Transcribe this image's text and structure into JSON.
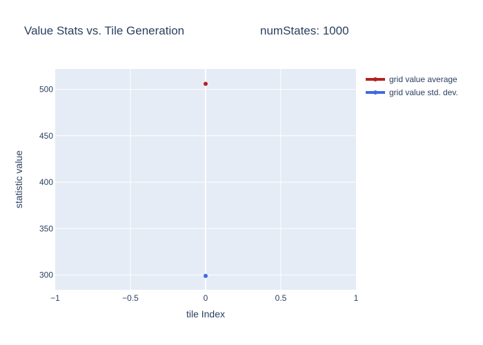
{
  "chart_data": {
    "type": "scatter",
    "title": "Value Stats vs. Tile Generation",
    "subtitle": "numStates: 1000",
    "xlabel": "tile Index",
    "ylabel": "statistic value",
    "xlim": [
      -1,
      1
    ],
    "ylim": [
      284,
      522
    ],
    "xticks": [
      -1,
      -0.5,
      0,
      0.5,
      1
    ],
    "xtick_labels": [
      "−1",
      "−0.5",
      "0",
      "0.5",
      "1"
    ],
    "yticks": [
      300,
      350,
      400,
      450,
      500
    ],
    "ytick_labels": [
      "300",
      "350",
      "400",
      "450",
      "500"
    ],
    "grid": true,
    "legend": "top-right outside",
    "plot_bg": "#e5ecf6",
    "series": [
      {
        "name": "grid value average",
        "color": "#b22222",
        "x": [
          0
        ],
        "y": [
          506
        ]
      },
      {
        "name": "grid value std. dev.",
        "color": "#4169e1",
        "x": [
          0
        ],
        "y": [
          299
        ]
      }
    ]
  }
}
